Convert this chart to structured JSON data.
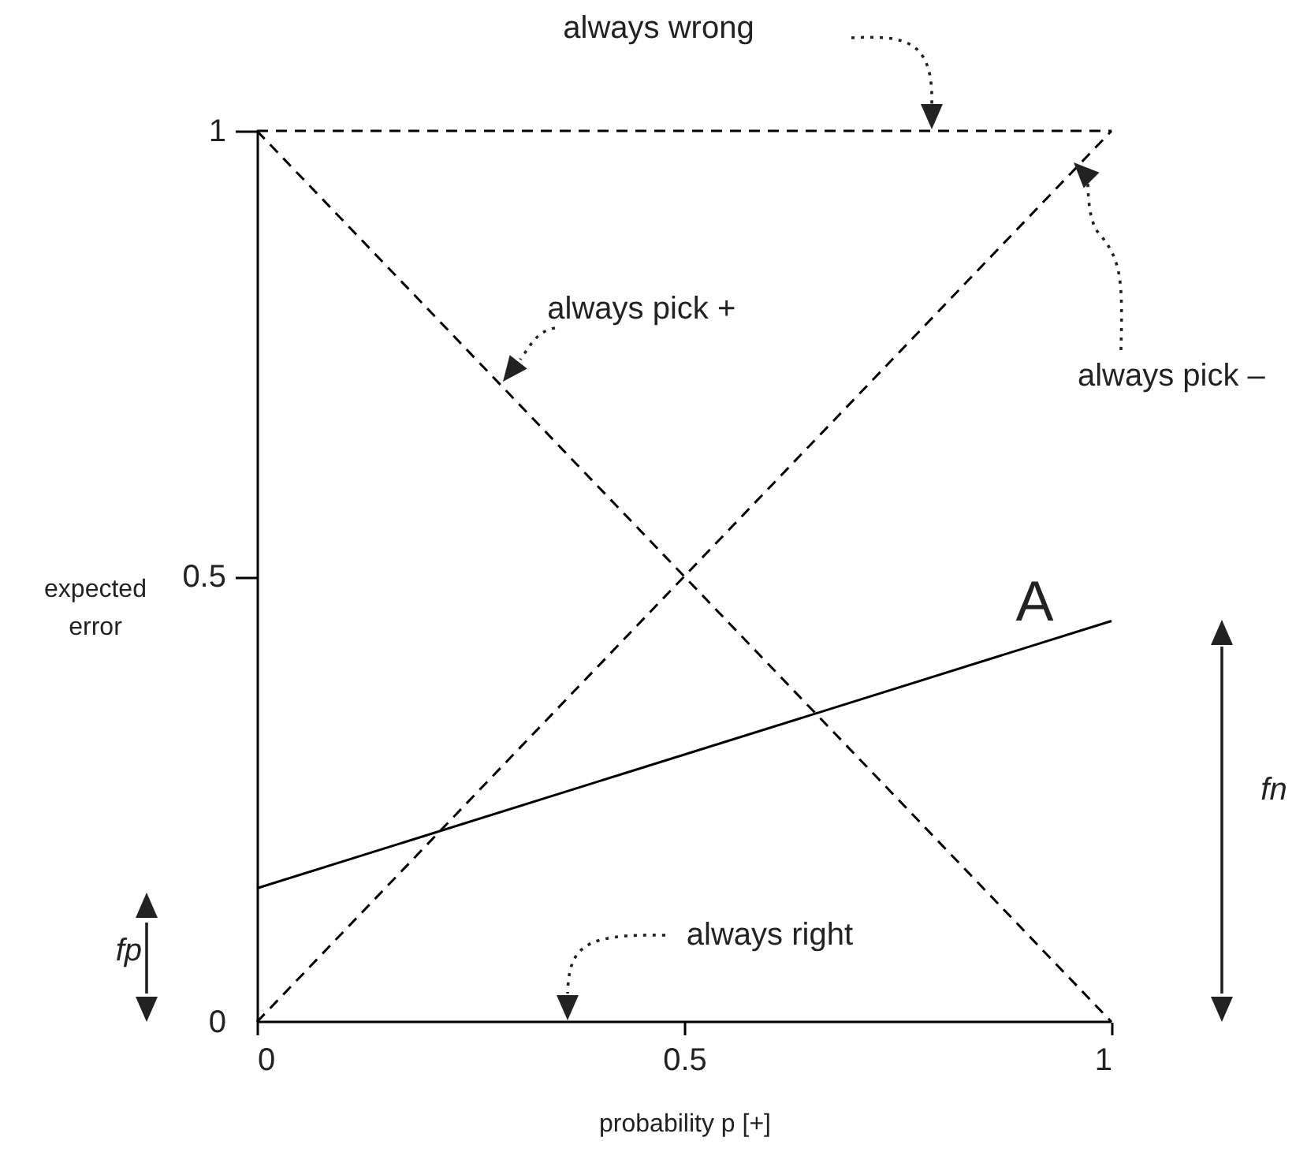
{
  "chart_data": {
    "type": "line",
    "xlabel": "probability p [+]",
    "ylabel": "expected error",
    "xlim": [
      0,
      1
    ],
    "ylim": [
      0,
      1
    ],
    "xticks": [
      0,
      0.5,
      1
    ],
    "yticks": [
      0,
      0.5,
      1
    ],
    "grid": false,
    "legend": false,
    "marker": "none",
    "x": [
      0,
      1
    ],
    "series": [
      {
        "name": "always wrong",
        "color": "#000000",
        "line_style": "dashed",
        "values": [
          1,
          1
        ]
      },
      {
        "name": "always pick +",
        "color": "#000000",
        "line_style": "dashed",
        "values": [
          1,
          0
        ]
      },
      {
        "name": "always pick –",
        "color": "#000000",
        "line_style": "dashed",
        "values": [
          0,
          1
        ]
      },
      {
        "name": "always right",
        "color": "#000000",
        "line_style": "solid",
        "values": [
          0,
          0
        ]
      },
      {
        "name": "A",
        "color": "#000000",
        "line_style": "solid",
        "values": [
          0.15,
          0.45
        ]
      }
    ],
    "annotations": [
      "fp",
      "fn"
    ]
  }
}
